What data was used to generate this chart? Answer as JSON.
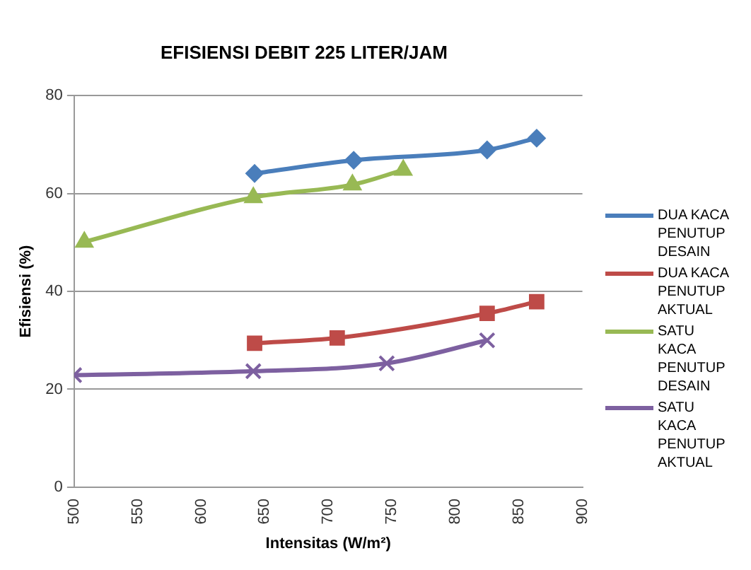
{
  "chart_data": {
    "type": "line",
    "title": "EFISIENSI DEBIT 225 LITER/JAM",
    "xlabel": "Intensitas (W/m²)",
    "ylabel": "Efisiensi (%)",
    "xlim": [
      500,
      900
    ],
    "xticks": [
      500,
      550,
      600,
      650,
      700,
      750,
      800,
      850,
      900
    ],
    "ylim": [
      0,
      80
    ],
    "yticks": [
      0,
      20,
      40,
      60,
      80
    ],
    "grid": "y",
    "legend": "right",
    "series": [
      {
        "name": "DUA KACA PENUTUP DESAIN",
        "color": "#4a7ebb",
        "marker": "diamond",
        "x": [
          642,
          720,
          825,
          864
        ],
        "values": [
          64.1,
          66.8,
          68.9,
          71.3
        ]
      },
      {
        "name": "DUA KACA PENUTUP AKTUAL",
        "color": "#be4b48",
        "marker": "square",
        "x": [
          642,
          707,
          825,
          864
        ],
        "values": [
          29.4,
          30.5,
          35.5,
          37.9
        ]
      },
      {
        "name": "SATU KACA PENUTUP DESAIN",
        "color": "#98b954",
        "marker": "triangle",
        "x": [
          508,
          641,
          719,
          759
        ],
        "values": [
          50.1,
          59.2,
          61.8,
          64.8
        ]
      },
      {
        "name": "SATU KACA PENUTUP AKTUAL",
        "color": "#7d60a0",
        "marker": "cross",
        "x": [
          500,
          641,
          746,
          825
        ],
        "values": [
          22.9,
          23.7,
          25.3,
          30.0
        ]
      }
    ]
  }
}
